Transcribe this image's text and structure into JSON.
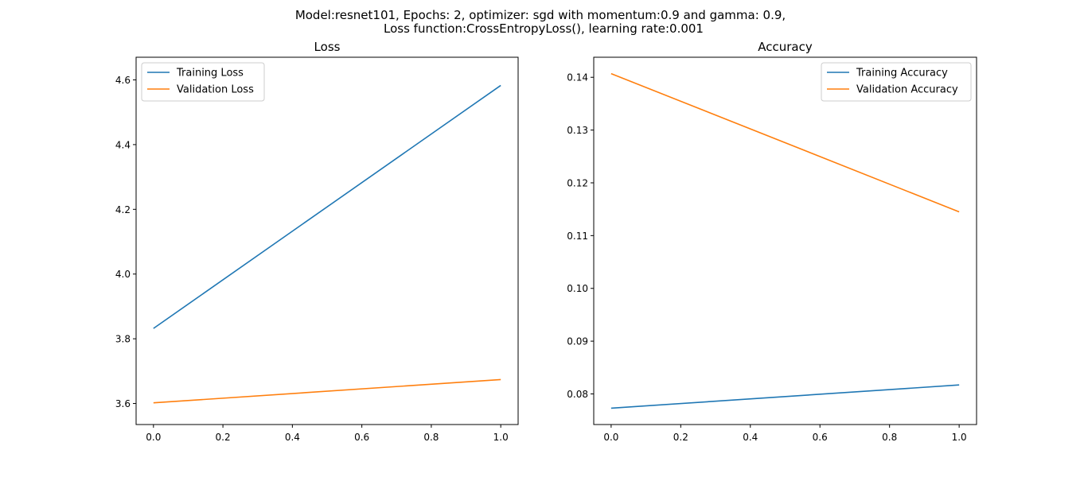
{
  "figure": {
    "suptitle_line1": "Model:resnet101, Epochs: 2, optimizer: sgd with momentum:0.9 and gamma: 0.9,",
    "suptitle_line2": "Loss function:CrossEntropyLoss(), learning rate:0.001"
  },
  "chart_data": [
    {
      "type": "line",
      "title": "Loss",
      "xlabel": "",
      "ylabel": "",
      "xlim": [
        -0.05,
        1.05
      ],
      "ylim": [
        3.535,
        4.67
      ],
      "xticks": [
        "0.0",
        "0.2",
        "0.4",
        "0.6",
        "0.8",
        "1.0"
      ],
      "yticks": [
        "3.6",
        "3.8",
        "4.0",
        "4.2",
        "4.4",
        "4.6"
      ],
      "grid": false,
      "legend": "upper-left",
      "x": [
        0,
        1
      ],
      "series": [
        {
          "name": "Training Loss",
          "color": "#1f77b4",
          "values": [
            3.832,
            4.583
          ]
        },
        {
          "name": "Validation Loss",
          "color": "#ff7f0e",
          "values": [
            3.602,
            3.674
          ]
        }
      ]
    },
    {
      "type": "line",
      "title": "Accuracy",
      "xlabel": "",
      "ylabel": "",
      "xlim": [
        -0.05,
        1.05
      ],
      "ylim": [
        0.0742,
        0.1438
      ],
      "xticks": [
        "0.0",
        "0.2",
        "0.4",
        "0.6",
        "0.8",
        "1.0"
      ],
      "yticks": [
        "0.08",
        "0.09",
        "0.10",
        "0.11",
        "0.12",
        "0.13",
        "0.14"
      ],
      "grid": false,
      "legend": "upper-right",
      "x": [
        0,
        1
      ],
      "series": [
        {
          "name": "Training Accuracy",
          "color": "#1f77b4",
          "values": [
            0.0773,
            0.0817
          ]
        },
        {
          "name": "Validation Accuracy",
          "color": "#ff7f0e",
          "values": [
            0.1407,
            0.1145
          ]
        }
      ]
    }
  ]
}
